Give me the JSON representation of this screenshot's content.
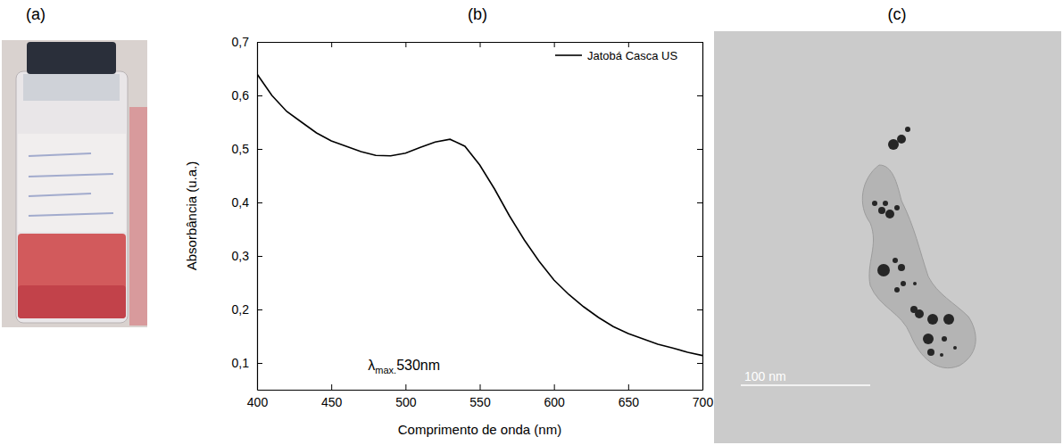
{
  "panel_labels": [
    "(a)",
    "(b)",
    "(c)"
  ],
  "chart_data": {
    "type": "line",
    "x_label": "Comprimento de onda (nm)",
    "y_label": "Absorbância (u.a.)",
    "x": [
      400,
      410,
      420,
      430,
      440,
      450,
      460,
      470,
      480,
      490,
      500,
      510,
      520,
      530,
      540,
      550,
      560,
      570,
      580,
      590,
      600,
      610,
      620,
      630,
      640,
      650,
      660,
      670,
      680,
      690,
      700
    ],
    "series": [
      {
        "name": "Jatobá Casca US",
        "color": "#000000",
        "values": [
          0.64,
          0.6,
          0.57,
          0.55,
          0.53,
          0.515,
          0.505,
          0.495,
          0.488,
          0.487,
          0.492,
          0.503,
          0.513,
          0.518,
          0.505,
          0.47,
          0.425,
          0.375,
          0.33,
          0.29,
          0.255,
          0.228,
          0.205,
          0.185,
          0.168,
          0.155,
          0.145,
          0.135,
          0.128,
          0.12,
          0.114
        ]
      }
    ],
    "xlim": [
      400,
      700
    ],
    "xticks": [
      400,
      450,
      500,
      550,
      600,
      650,
      700
    ],
    "ylim": [
      0.05,
      0.7
    ],
    "yticks": [
      {
        "value": 0.1,
        "label": "0,1"
      },
      {
        "value": 0.2,
        "label": "0,2"
      },
      {
        "value": 0.3,
        "label": "0,3"
      },
      {
        "value": 0.4,
        "label": "0,4"
      },
      {
        "value": 0.5,
        "label": "0,5"
      },
      {
        "value": 0.6,
        "label": "0,6"
      },
      {
        "value": 0.7,
        "label": "0,7"
      }
    ],
    "legend": "top-right",
    "annotation": {
      "symbol": "λ",
      "subscript": "max.",
      "text": "530nm"
    }
  },
  "tem_image": {
    "scale_bar_label": "100 nm"
  }
}
